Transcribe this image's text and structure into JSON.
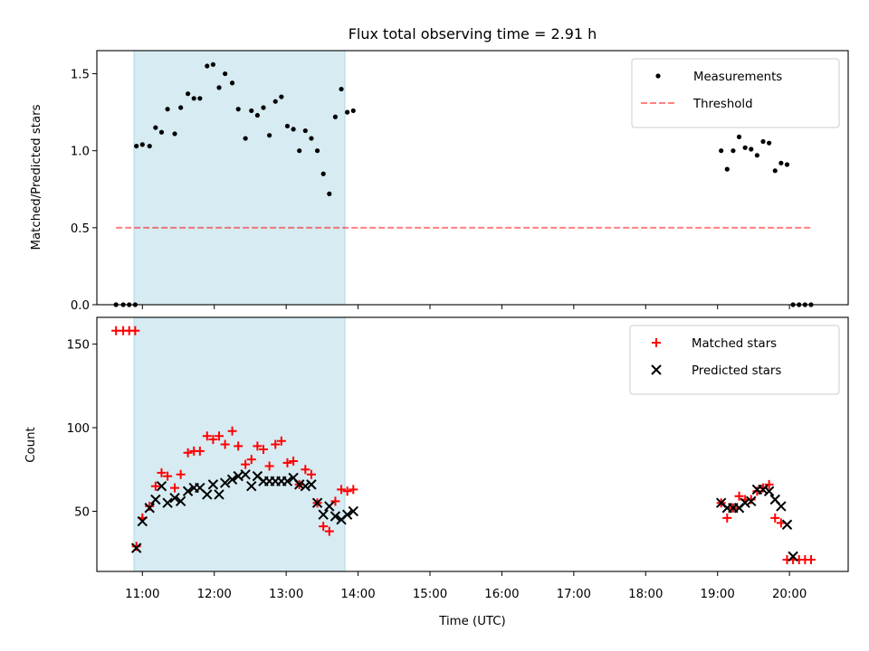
{
  "chart_data": [
    {
      "type": "scatter",
      "title": "Flux total observing time = 2.91 h",
      "xlabel": "",
      "ylabel": "Matched/Predicted stars",
      "xlim": [
        "10:22",
        "20:49"
      ],
      "ylim": [
        0,
        1.65
      ],
      "yticks": [
        0.0,
        0.5,
        1.0,
        1.5
      ],
      "grid": false,
      "legend_position": "top-right",
      "shaded_interval": [
        "10:53",
        "13:49"
      ],
      "shaded_color": "#add8e6",
      "series": [
        {
          "name": "Measurements",
          "marker": "dot",
          "color": "#000000",
          "points": [
            [
              "10:38",
              0.0
            ],
            [
              "10:44",
              0.0
            ],
            [
              "10:49",
              0.0
            ],
            [
              "10:54",
              0.0
            ],
            [
              "10:55",
              1.03
            ],
            [
              "11:00",
              1.04
            ],
            [
              "11:06",
              1.03
            ],
            [
              "11:11",
              1.15
            ],
            [
              "11:16",
              1.12
            ],
            [
              "11:21",
              1.27
            ],
            [
              "11:27",
              1.11
            ],
            [
              "11:32",
              1.28
            ],
            [
              "11:38",
              1.37
            ],
            [
              "11:43",
              1.34
            ],
            [
              "11:48",
              1.34
            ],
            [
              "11:54",
              1.55
            ],
            [
              "11:59",
              1.56
            ],
            [
              "12:04",
              1.41
            ],
            [
              "12:09",
              1.5
            ],
            [
              "12:15",
              1.44
            ],
            [
              "12:20",
              1.27
            ],
            [
              "12:26",
              1.08
            ],
            [
              "12:31",
              1.26
            ],
            [
              "12:36",
              1.23
            ],
            [
              "12:41",
              1.28
            ],
            [
              "12:46",
              1.1
            ],
            [
              "12:51",
              1.32
            ],
            [
              "12:56",
              1.35
            ],
            [
              "13:01",
              1.16
            ],
            [
              "13:06",
              1.14
            ],
            [
              "13:11",
              1.0
            ],
            [
              "13:16",
              1.13
            ],
            [
              "13:21",
              1.08
            ],
            [
              "13:26",
              1.0
            ],
            [
              "13:31",
              0.85
            ],
            [
              "13:36",
              0.72
            ],
            [
              "13:41",
              1.22
            ],
            [
              "13:46",
              1.4
            ],
            [
              "13:51",
              1.25
            ],
            [
              "13:56",
              1.26
            ],
            [
              "19:03",
              1.0
            ],
            [
              "19:08",
              0.88
            ],
            [
              "19:13",
              1.0
            ],
            [
              "19:18",
              1.09
            ],
            [
              "19:23",
              1.02
            ],
            [
              "19:28",
              1.01
            ],
            [
              "19:33",
              0.97
            ],
            [
              "19:38",
              1.06
            ],
            [
              "19:43",
              1.05
            ],
            [
              "19:48",
              0.87
            ],
            [
              "19:53",
              0.92
            ],
            [
              "19:58",
              0.91
            ],
            [
              "20:03",
              0.0
            ],
            [
              "20:08",
              0.0
            ],
            [
              "20:13",
              0.0
            ],
            [
              "20:18",
              0.0
            ]
          ]
        },
        {
          "name": "Threshold",
          "marker": "dashed-line",
          "color": "#ff0000",
          "opacity": 0.5,
          "points": [
            [
              "10:38",
              0.5
            ],
            [
              "20:18",
              0.5
            ]
          ]
        }
      ]
    },
    {
      "type": "scatter",
      "title": "",
      "xlabel": "Time (UTC)",
      "ylabel": "Count",
      "xlim": [
        "10:22",
        "20:49"
      ],
      "ylim": [
        14,
        166
      ],
      "yticks": [
        50,
        100,
        150
      ],
      "xticks": [
        "11:00",
        "12:00",
        "13:00",
        "14:00",
        "15:00",
        "16:00",
        "17:00",
        "18:00",
        "19:00",
        "20:00"
      ],
      "grid": false,
      "legend_position": "top-right",
      "shaded_interval": [
        "10:53",
        "13:49"
      ],
      "shaded_color": "#add8e6",
      "series": [
        {
          "name": "Matched stars",
          "marker": "plus",
          "color": "#ff0000",
          "points": [
            [
              "10:38",
              158
            ],
            [
              "10:44",
              158
            ],
            [
              "10:49",
              158
            ],
            [
              "10:54",
              158
            ],
            [
              "10:55",
              29
            ],
            [
              "11:00",
              46
            ],
            [
              "11:06",
              53
            ],
            [
              "11:11",
              65
            ],
            [
              "11:16",
              73
            ],
            [
              "11:21",
              71
            ],
            [
              "11:27",
              64
            ],
            [
              "11:32",
              72
            ],
            [
              "11:38",
              85
            ],
            [
              "11:43",
              86
            ],
            [
              "11:48",
              86
            ],
            [
              "11:54",
              95
            ],
            [
              "11:59",
              93
            ],
            [
              "12:04",
              95
            ],
            [
              "12:09",
              90
            ],
            [
              "12:15",
              98
            ],
            [
              "12:20",
              89
            ],
            [
              "12:26",
              78
            ],
            [
              "12:31",
              81
            ],
            [
              "12:36",
              89
            ],
            [
              "12:41",
              87
            ],
            [
              "12:46",
              77
            ],
            [
              "12:51",
              90
            ],
            [
              "12:56",
              92
            ],
            [
              "13:01",
              79
            ],
            [
              "13:06",
              80
            ],
            [
              "13:11",
              66
            ],
            [
              "13:16",
              75
            ],
            [
              "13:21",
              72
            ],
            [
              "13:26",
              55
            ],
            [
              "13:31",
              41
            ],
            [
              "13:36",
              38
            ],
            [
              "13:41",
              56
            ],
            [
              "13:46",
              63
            ],
            [
              "13:51",
              62
            ],
            [
              "13:56",
              63
            ],
            [
              "19:03",
              55
            ],
            [
              "19:08",
              46
            ],
            [
              "19:13",
              52
            ],
            [
              "19:18",
              59
            ],
            [
              "19:23",
              57
            ],
            [
              "19:28",
              57
            ],
            [
              "19:33",
              62
            ],
            [
              "19:38",
              64
            ],
            [
              "19:43",
              66
            ],
            [
              "19:48",
              46
            ],
            [
              "19:53",
              43
            ],
            [
              "19:58",
              21
            ],
            [
              "20:03",
              21
            ],
            [
              "20:08",
              21
            ],
            [
              "20:13",
              21
            ],
            [
              "20:18",
              21
            ]
          ]
        },
        {
          "name": "Predicted stars",
          "marker": "x",
          "color": "#000000",
          "points": [
            [
              "10:55",
              28
            ],
            [
              "11:00",
              44
            ],
            [
              "11:06",
              52
            ],
            [
              "11:11",
              57
            ],
            [
              "11:16",
              65
            ],
            [
              "11:21",
              55
            ],
            [
              "11:27",
              58
            ],
            [
              "11:32",
              56
            ],
            [
              "11:38",
              62
            ],
            [
              "11:43",
              64
            ],
            [
              "11:48",
              64
            ],
            [
              "11:54",
              60
            ],
            [
              "11:59",
              66
            ],
            [
              "12:04",
              60
            ],
            [
              "12:09",
              67
            ],
            [
              "12:15",
              69
            ],
            [
              "12:20",
              71
            ],
            [
              "12:26",
              72
            ],
            [
              "12:31",
              65
            ],
            [
              "12:36",
              71
            ],
            [
              "12:41",
              68
            ],
            [
              "12:46",
              68
            ],
            [
              "12:51",
              68
            ],
            [
              "12:56",
              68
            ],
            [
              "13:01",
              68
            ],
            [
              "13:06",
              70
            ],
            [
              "13:11",
              66
            ],
            [
              "13:16",
              65
            ],
            [
              "13:21",
              66
            ],
            [
              "13:26",
              55
            ],
            [
              "13:31",
              48
            ],
            [
              "13:36",
              53
            ],
            [
              "13:41",
              47
            ],
            [
              "13:46",
              45
            ],
            [
              "13:51",
              48
            ],
            [
              "13:56",
              50
            ],
            [
              "19:03",
              55
            ],
            [
              "19:08",
              52
            ],
            [
              "19:13",
              52
            ],
            [
              "19:18",
              52
            ],
            [
              "19:23",
              55
            ],
            [
              "19:28",
              56
            ],
            [
              "19:33",
              63
            ],
            [
              "19:38",
              63
            ],
            [
              "19:43",
              62
            ],
            [
              "19:48",
              57
            ],
            [
              "19:53",
              53
            ],
            [
              "19:58",
              42
            ],
            [
              "20:03",
              23
            ]
          ]
        }
      ]
    }
  ]
}
